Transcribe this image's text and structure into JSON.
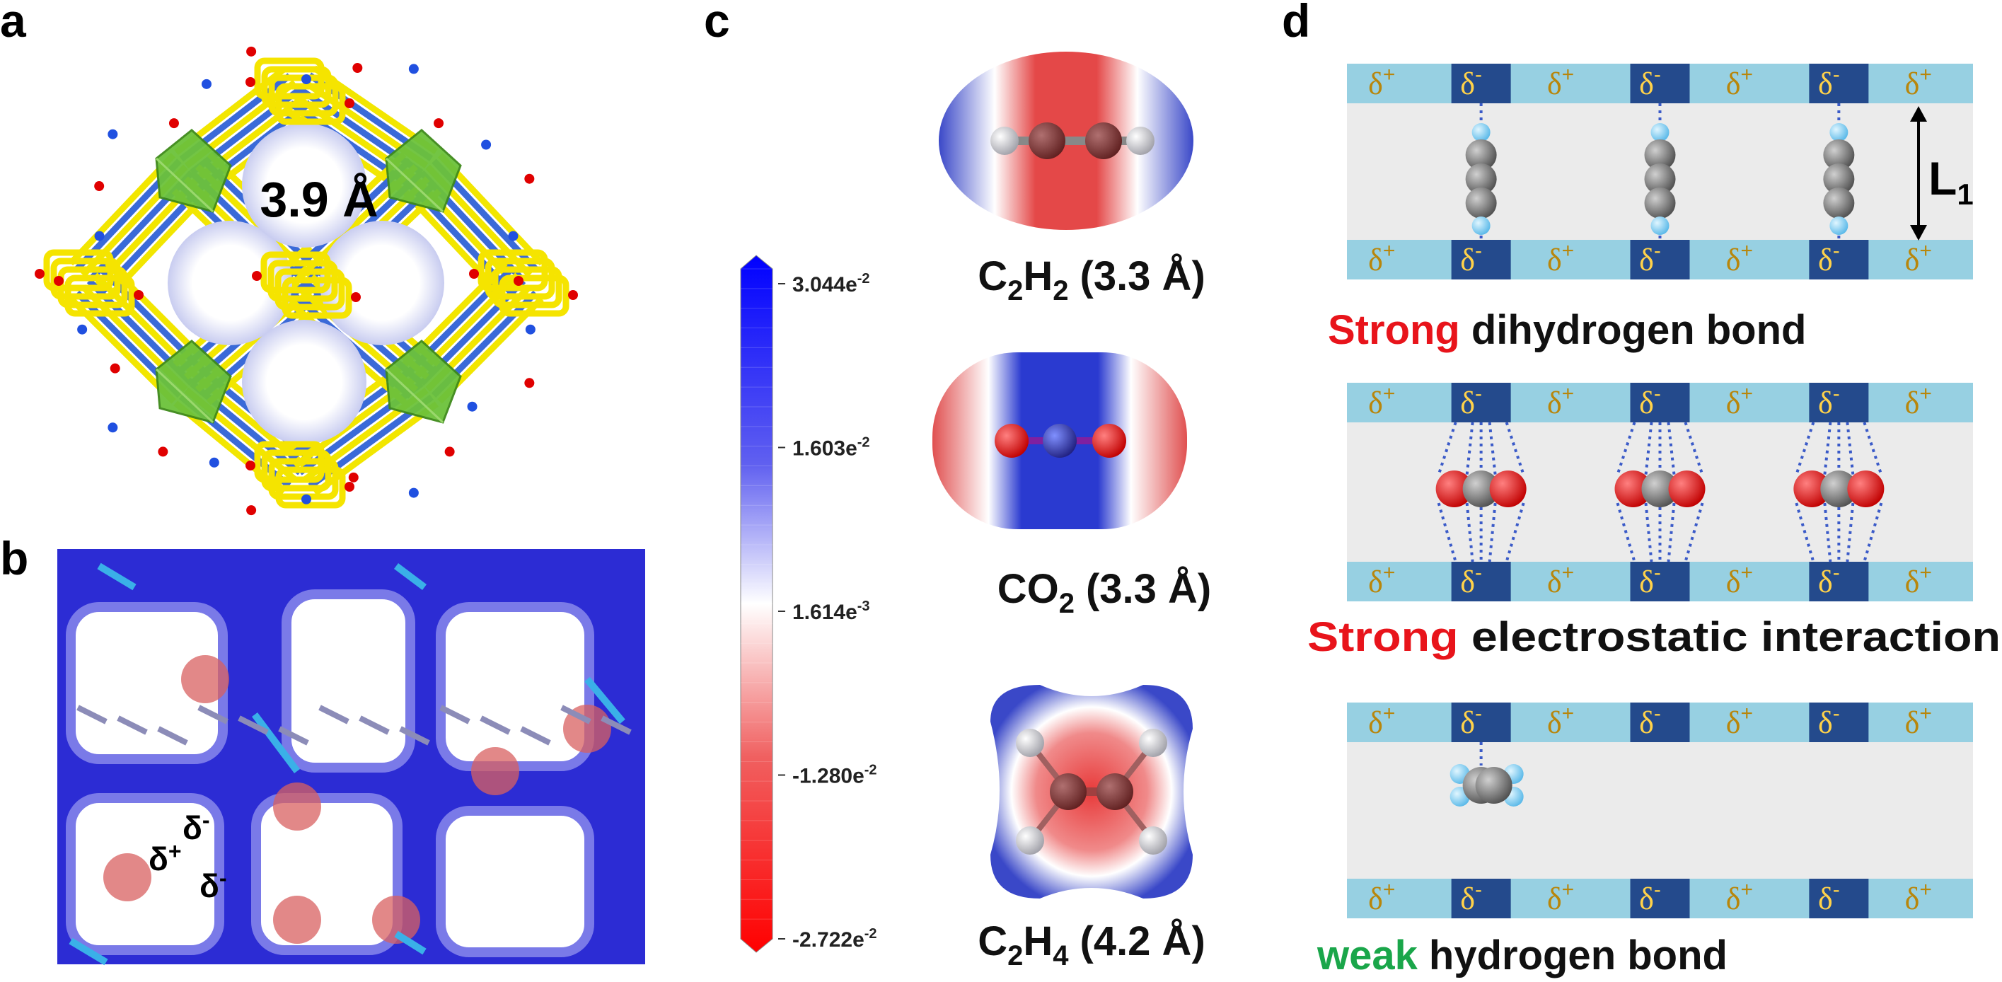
{
  "panel_a": {
    "label": "a",
    "distance": "3.9 Å"
  },
  "panel_b": {
    "label": "b",
    "symbol": "δ",
    "annotation_charges": [
      "+",
      "-",
      "-"
    ]
  },
  "panel_c": {
    "label": "c",
    "colorbar_ticks": [
      {
        "mantissa": "3.044e",
        "exponent": "-2"
      },
      {
        "mantissa": "1.603e",
        "exponent": "-2"
      },
      {
        "mantissa": "1.614e",
        "exponent": "-3"
      },
      {
        "mantissa": "-1.280e",
        "exponent": "-2"
      },
      {
        "mantissa": "-2.722e",
        "exponent": "-2"
      }
    ],
    "molecules": [
      {
        "formula": [
          [
            "C",
            "2"
          ],
          [
            "H",
            "2"
          ]
        ],
        "size": "(3.3 Å)"
      },
      {
        "formula": [
          [
            "CO",
            "2"
          ]
        ],
        "size": "(3.3 Å)"
      },
      {
        "formula": [
          [
            "C",
            "2"
          ],
          [
            "H",
            "4"
          ]
        ],
        "size": "(4.2 Å)"
      }
    ]
  },
  "panel_d": {
    "label": "d",
    "symbol": "δ",
    "strip_charges": [
      "+",
      "-",
      "+",
      "-",
      "+",
      "-",
      "+"
    ],
    "distance_label": {
      "text": "L",
      "sub": "1"
    },
    "sections": [
      {
        "emphasis": "Strong",
        "emphasis_color": "#e8141b",
        "text": "dihydrogen bond"
      },
      {
        "emphasis": "Strong",
        "emphasis_color": "#e8141b",
        "text": "electrostatic interaction"
      },
      {
        "emphasis": "weak",
        "emphasis_color": "#1aa64a",
        "text": "hydrogen bond"
      }
    ]
  }
}
